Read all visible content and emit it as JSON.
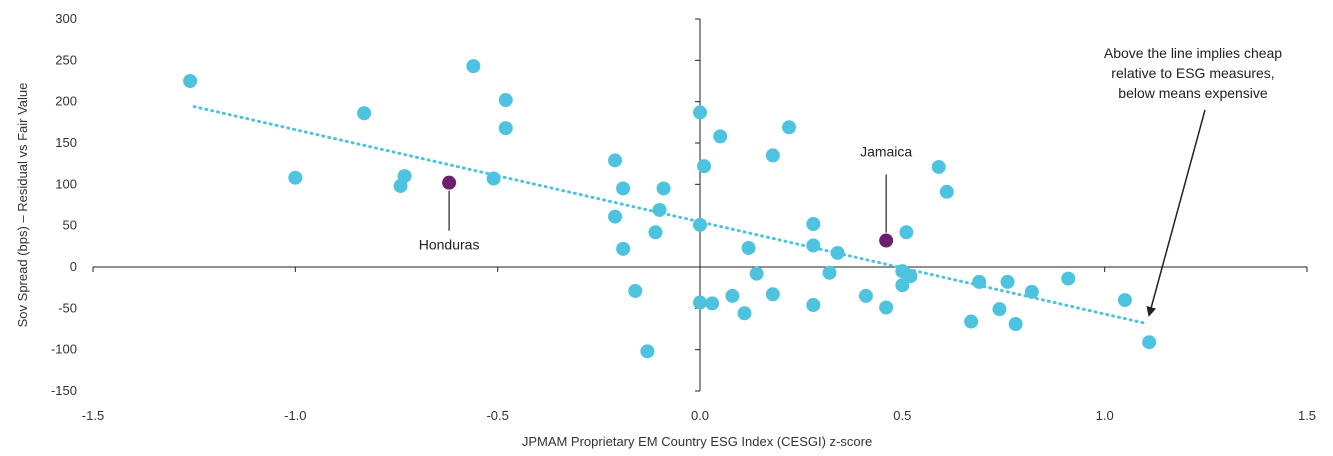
{
  "chart_data": {
    "type": "scatter",
    "title": "",
    "xlabel": "JPMAM Proprietary EM Country ESG Index (CESGI) z-score",
    "ylabel": "Sov Spread (bps) – Residual vs Fair Value",
    "xlim": [
      -1.5,
      1.5
    ],
    "ylim": [
      -150,
      300
    ],
    "xticks": [
      "-1.5",
      "-1.0",
      "-0.5",
      "0.0",
      "0.5",
      "1.0",
      "1.5"
    ],
    "yticks": [
      "300",
      "250",
      "200",
      "150",
      "100",
      "50",
      "0",
      "-50",
      "-100",
      "-150"
    ],
    "grid": false,
    "colors": {
      "points": "#4ec3e0",
      "highlight": "#6b1f6e",
      "trend": "#4ec3e0",
      "axis": "#222222"
    },
    "points": [
      {
        "x": -1.26,
        "y": 225
      },
      {
        "x": -1.0,
        "y": 108
      },
      {
        "x": -0.83,
        "y": 186
      },
      {
        "x": -0.73,
        "y": 110
      },
      {
        "x": -0.74,
        "y": 98
      },
      {
        "x": -0.56,
        "y": 243
      },
      {
        "x": -0.48,
        "y": 202
      },
      {
        "x": -0.48,
        "y": 168
      },
      {
        "x": -0.51,
        "y": 107
      },
      {
        "x": -0.21,
        "y": 129
      },
      {
        "x": -0.19,
        "y": 95
      },
      {
        "x": -0.21,
        "y": 61
      },
      {
        "x": -0.19,
        "y": 22
      },
      {
        "x": -0.16,
        "y": -29
      },
      {
        "x": -0.13,
        "y": -102
      },
      {
        "x": -0.09,
        "y": 95
      },
      {
        "x": -0.1,
        "y": 69
      },
      {
        "x": -0.11,
        "y": 42
      },
      {
        "x": 0.0,
        "y": 187
      },
      {
        "x": 0.0,
        "y": 51
      },
      {
        "x": 0.01,
        "y": 122
      },
      {
        "x": 0.0,
        "y": -43
      },
      {
        "x": 0.03,
        "y": -44
      },
      {
        "x": 0.05,
        "y": 158
      },
      {
        "x": 0.08,
        "y": -35
      },
      {
        "x": 0.12,
        "y": 23
      },
      {
        "x": 0.11,
        "y": -56
      },
      {
        "x": 0.14,
        "y": -8
      },
      {
        "x": 0.18,
        "y": 135
      },
      {
        "x": 0.22,
        "y": 169
      },
      {
        "x": 0.18,
        "y": -33
      },
      {
        "x": 0.28,
        "y": 52
      },
      {
        "x": 0.28,
        "y": 26
      },
      {
        "x": 0.28,
        "y": -46
      },
      {
        "x": 0.32,
        "y": -7
      },
      {
        "x": 0.34,
        "y": 17
      },
      {
        "x": 0.41,
        "y": -35
      },
      {
        "x": 0.46,
        "y": -49
      },
      {
        "x": 0.5,
        "y": -5
      },
      {
        "x": 0.5,
        "y": -22
      },
      {
        "x": 0.51,
        "y": 42
      },
      {
        "x": 0.52,
        "y": -11
      },
      {
        "x": 0.59,
        "y": 121
      },
      {
        "x": 0.61,
        "y": 91
      },
      {
        "x": 0.67,
        "y": -66
      },
      {
        "x": 0.69,
        "y": -18
      },
      {
        "x": 0.74,
        "y": -51
      },
      {
        "x": 0.76,
        "y": -18
      },
      {
        "x": 0.78,
        "y": -69
      },
      {
        "x": 0.82,
        "y": -30
      },
      {
        "x": 0.91,
        "y": -14
      },
      {
        "x": 1.05,
        "y": -40
      },
      {
        "x": 1.11,
        "y": -91
      }
    ],
    "highlighted": [
      {
        "name": "Honduras",
        "x": -0.62,
        "y": 102
      },
      {
        "name": "Jamaica",
        "x": 0.46,
        "y": 32
      }
    ],
    "trendline": {
      "style": "dotted",
      "x": [
        -1.25,
        1.1
      ],
      "y": [
        194,
        -68
      ]
    },
    "annotation": {
      "lines": [
        "Above the line implies cheap",
        "relative to ESG measures,",
        "below means expensive"
      ],
      "arrow_to": {
        "x": 1.11,
        "y": -58
      }
    }
  }
}
